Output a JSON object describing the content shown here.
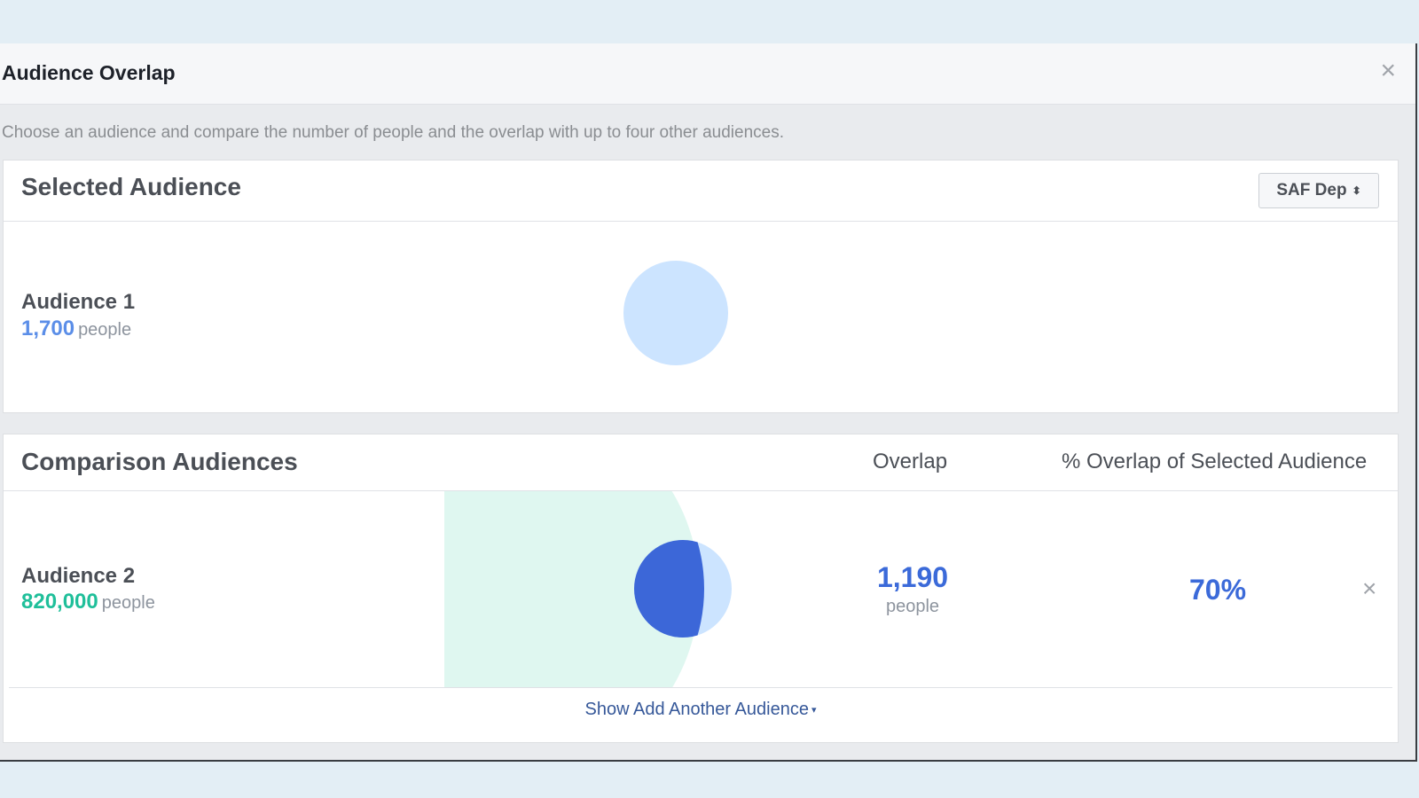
{
  "dialog": {
    "title": "Audience Overlap",
    "close_icon": "×",
    "description": "Choose an audience and compare the number of people and the overlap with up to four other audiences."
  },
  "selected": {
    "title": "Selected Audience",
    "select_label": "SAF Dep",
    "select_icon": "sort-icon",
    "audience": {
      "name": "Audience 1",
      "count": "1,700",
      "people_label": "people",
      "color": "#5b8ee8"
    }
  },
  "comparison": {
    "title": "Comparison Audiences",
    "col_overlap": "Overlap",
    "col_pct": "% Overlap of Selected Audience",
    "rows": [
      {
        "name": "Audience 2",
        "count": "820,000",
        "people_label": "people",
        "color": "#1fbf9a",
        "overlap": "1,190",
        "overlap_people_label": "people",
        "pct": "70%",
        "remove_icon": "×"
      }
    ],
    "add_link": "Show Add Another Audience",
    "add_caret": "▾"
  },
  "colors": {
    "selected_circle": "#cce4ff",
    "comparison_area": "#dff7f0",
    "overlap_fill": "#3c67d8",
    "accent_blue": "#3b6ad9"
  }
}
